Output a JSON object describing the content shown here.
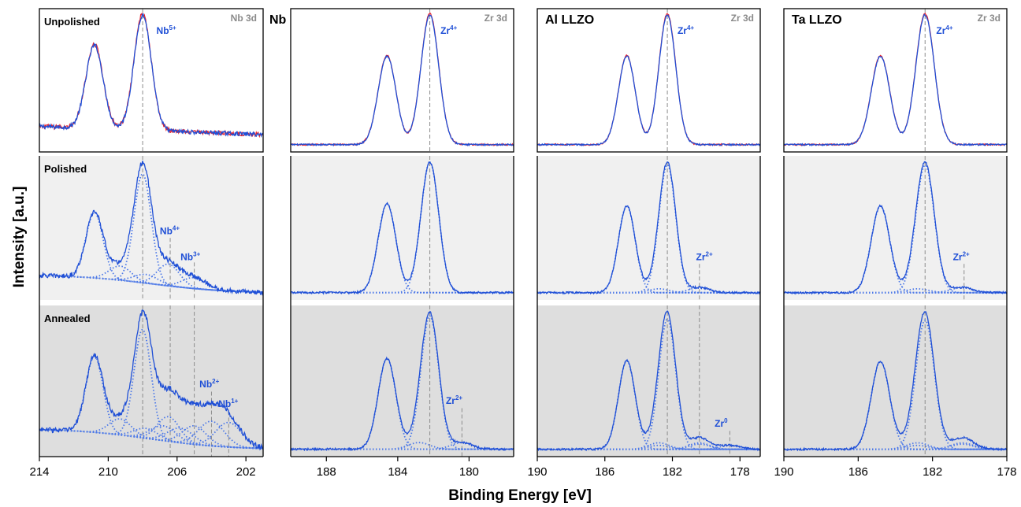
{
  "figure": {
    "xlabel": "Binding Energy [eV]",
    "ylabel": "Intensity [a.u.]",
    "row_labels": [
      "Unpolished",
      "Polished",
      "Annealed"
    ],
    "row_backgrounds": [
      "#ffffff",
      "#f0f0f0",
      "#dedede"
    ],
    "colors": {
      "fit": "#1f4fd6",
      "dotted": "#4d79e8",
      "red": "#e8202a",
      "guide": "#8c8c8c",
      "bg": "#a0b4e0"
    }
  },
  "chart_data": [
    {
      "type": "line",
      "id": "nb",
      "title": "Nb LLZO",
      "region": "Nb 3d",
      "xlim": [
        214,
        201
      ],
      "xticks": [
        214,
        210,
        206,
        202
      ],
      "guides": [
        208.0,
        206.4,
        205.0,
        204.0,
        203.0
      ],
      "rows": [
        {
          "annotations": [
            {
              "text": "Nb",
              "sup": "5+",
              "x": 207.2,
              "y": 0.12
            }
          ],
          "guide_tops": [
            0.0,
            null,
            null,
            null,
            null
          ]
        },
        {
          "annotations": [
            {
              "text": "Nb",
              "sup": "4+",
              "x": 207.0,
              "y": 0.49
            },
            {
              "text": "Nb",
              "sup": "3+",
              "x": 205.8,
              "y": 0.67
            }
          ],
          "guide_tops": [
            0.0,
            0.57,
            0.74,
            null,
            null
          ]
        },
        {
          "annotations": [
            {
              "text": "Nb",
              "sup": "2+",
              "x": 204.7,
              "y": 0.49
            },
            {
              "text": "Nb",
              "sup": "1+",
              "x": 203.6,
              "y": 0.62
            }
          ],
          "guide_tops": [
            0.0,
            0.0,
            0.0,
            0.57,
            0.7
          ]
        }
      ]
    },
    {
      "type": "line",
      "id": "zr_nb",
      "title": "",
      "region": "Zr 3d",
      "xlim": [
        190,
        177.5
      ],
      "xticks": [
        188,
        184,
        180
      ],
      "guides": [
        182.2,
        180.4
      ],
      "rows": [
        {
          "annotations": [
            {
              "text": "Zr",
              "sup": "4+",
              "x": 181.6,
              "y": 0.12
            }
          ],
          "guide_tops": [
            0.0,
            null
          ]
        },
        {
          "annotations": [],
          "guide_tops": [
            0.0,
            null
          ]
        },
        {
          "annotations": [
            {
              "text": "Zr",
              "sup": "2+",
              "x": 181.3,
              "y": 0.6
            }
          ],
          "guide_tops": [
            0.0,
            0.68
          ]
        }
      ]
    },
    {
      "type": "line",
      "id": "al",
      "title": "Al LLZO",
      "region": "Zr 3d",
      "xlim": [
        190,
        176.8
      ],
      "xticks": [
        190,
        186,
        182,
        178
      ],
      "guides": [
        182.3,
        180.4,
        178.6
      ],
      "rows": [
        {
          "annotations": [
            {
              "text": "Zr",
              "sup": "4+",
              "x": 181.7,
              "y": 0.12
            }
          ],
          "guide_tops": [
            0.0,
            null,
            null
          ]
        },
        {
          "annotations": [
            {
              "text": "Zr",
              "sup": "2+",
              "x": 180.6,
              "y": 0.67
            }
          ],
          "guide_tops": [
            0.0,
            0.75,
            null
          ]
        },
        {
          "annotations": [
            {
              "text": "Zr",
              "sup": "0",
              "x": 179.5,
              "y": 0.75
            }
          ],
          "guide_tops": [
            0.0,
            0.0,
            0.83
          ]
        }
      ]
    },
    {
      "type": "line",
      "id": "ta",
      "title": "Ta LLZO",
      "region": "Zr 3d",
      "xlim": [
        190,
        178
      ],
      "xticks": [
        190,
        186,
        182,
        178
      ],
      "guides": [
        182.4,
        180.3
      ],
      "rows": [
        {
          "annotations": [
            {
              "text": "Zr",
              "sup": "4+",
              "x": 181.8,
              "y": 0.12
            }
          ],
          "guide_tops": [
            0.0,
            null
          ]
        },
        {
          "annotations": [
            {
              "text": "Zr",
              "sup": "2+",
              "x": 180.9,
              "y": 0.67
            }
          ],
          "guide_tops": [
            0.0,
            0.75
          ]
        },
        {
          "annotations": [],
          "guide_tops": [
            0.0,
            null
          ]
        }
      ]
    }
  ]
}
